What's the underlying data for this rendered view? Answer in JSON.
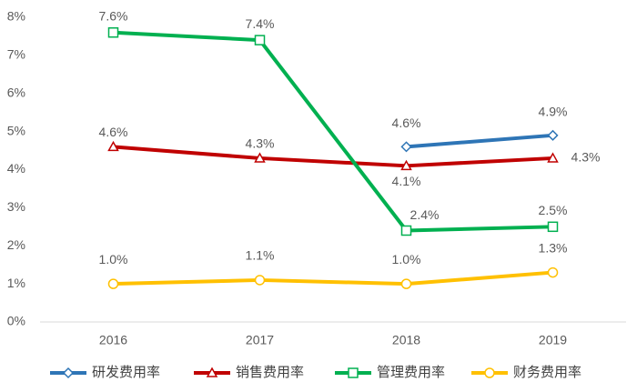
{
  "chart_data": {
    "type": "line",
    "categories": [
      "2016",
      "2017",
      "2018",
      "2019"
    ],
    "ylim": [
      0,
      8
    ],
    "yticks": [
      {
        "value": 0,
        "label": "0%"
      },
      {
        "value": 1,
        "label": "1%"
      },
      {
        "value": 2,
        "label": "2%"
      },
      {
        "value": 3,
        "label": "3%"
      },
      {
        "value": 4,
        "label": "4%"
      },
      {
        "value": 5,
        "label": "5%"
      },
      {
        "value": 6,
        "label": "6%"
      },
      {
        "value": 7,
        "label": "7%"
      },
      {
        "value": 8,
        "label": "8%"
      }
    ],
    "grid": false,
    "legend": "bottom",
    "series": [
      {
        "name": "研发费用率",
        "color": "#2e75b6",
        "marker": "diamond",
        "values": [
          null,
          null,
          4.6,
          4.9
        ],
        "value_labels": [
          null,
          null,
          "4.6%",
          "4.9%"
        ]
      },
      {
        "name": "销售费用率",
        "color": "#c00000",
        "marker": "triangle",
        "values": [
          4.6,
          4.3,
          4.1,
          4.3
        ],
        "value_labels": [
          "4.6%",
          "4.3%",
          "4.1%",
          "4.3%"
        ]
      },
      {
        "name": "管理费用率",
        "color": "#00b050",
        "marker": "square",
        "values": [
          7.6,
          7.4,
          2.4,
          2.5
        ],
        "value_labels": [
          "7.6%",
          "7.4%",
          "2.4%",
          "2.5%"
        ]
      },
      {
        "name": "财务费用率",
        "color": "#ffc000",
        "marker": "circle",
        "values": [
          1.0,
          1.1,
          1.0,
          1.3
        ],
        "value_labels": [
          "1.0%",
          "1.1%",
          "1.0%",
          "1.3%"
        ]
      }
    ]
  }
}
